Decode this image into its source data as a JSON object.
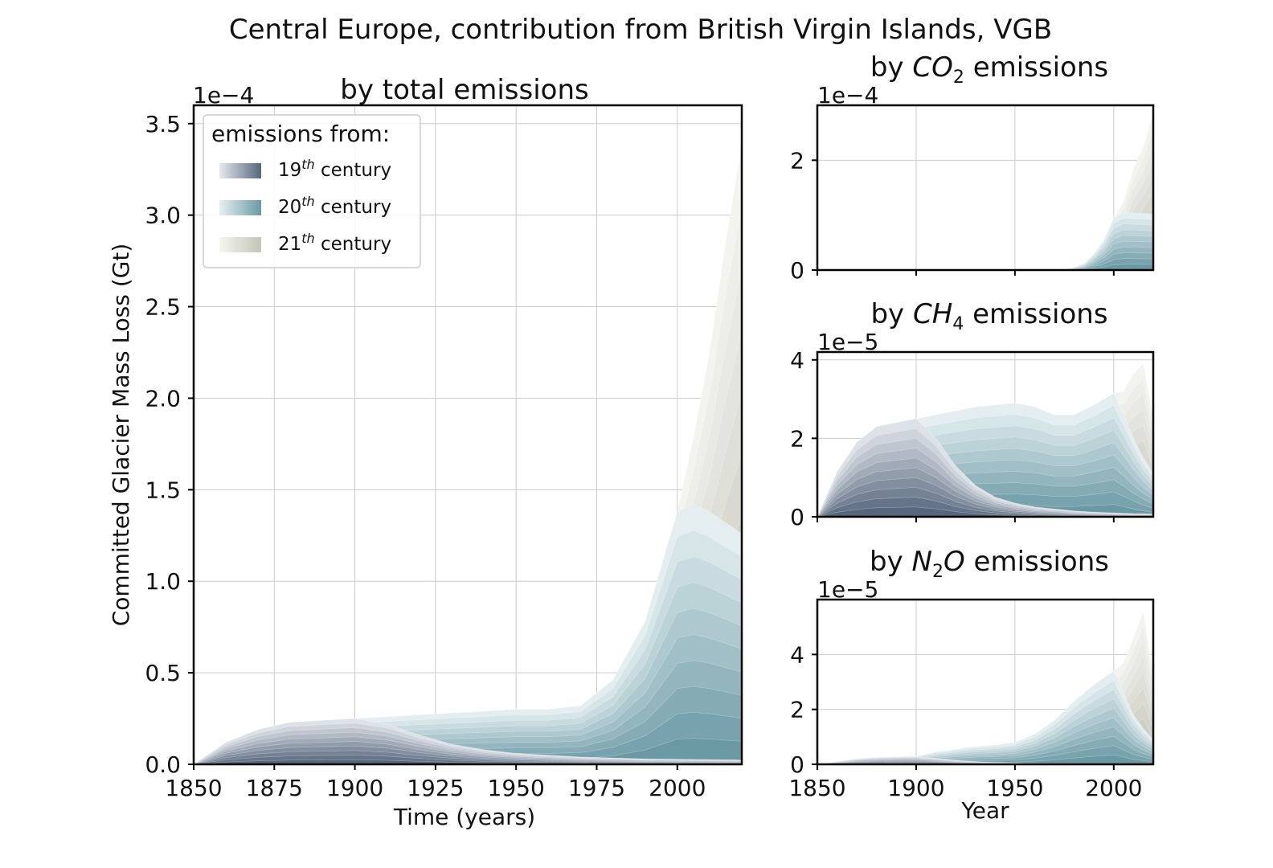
{
  "figure": {
    "suptitle": "Central Europe, contribution from British Virgin Islands, VGB"
  },
  "legend": {
    "title": "emissions from:",
    "entries": [
      {
        "base": "19",
        "sup": "th",
        "rest": " century",
        "colors": [
          "#dde2e8",
          "#b3bcc8",
          "#8a98aa",
          "#5f6f84"
        ]
      },
      {
        "base": "20",
        "sup": "th",
        "rest": " century",
        "colors": [
          "#dfeaee",
          "#b6d0d8",
          "#8eb6c1",
          "#6b98a4"
        ]
      },
      {
        "base": "21",
        "sup": "th",
        "rest": " century",
        "colors": [
          "#f0f0ec",
          "#e2e2da",
          "#d4d4ca",
          "#c5c6ba"
        ]
      }
    ]
  },
  "colors": {
    "c19_light": "#dde2e8",
    "c19_dark": "#56667c",
    "c20_light": "#e4eef1",
    "c20_dark": "#6a99a4",
    "c21_light": "#f3f3ef",
    "c21_dark": "#c4c5b8"
  },
  "chart_data": [
    {
      "id": "total",
      "type": "area",
      "title": "by total emissions",
      "xlabel": "Time (years)",
      "ylabel": "Committed Glacier Mass Loss (Gt)",
      "exponent_label": "1e−4",
      "xlim": [
        1850,
        2020
      ],
      "ylim": [
        0,
        3.6
      ],
      "x_ticks": [
        1850,
        1875,
        1900,
        1925,
        1950,
        1975,
        2000
      ],
      "x_tick_labels": [
        "1850",
        "1875",
        "1900",
        "1925",
        "1950",
        "1975",
        "2000"
      ],
      "y_ticks": [
        0,
        0.5,
        1.0,
        1.5,
        2.0,
        2.5,
        3.0,
        3.5
      ],
      "y_tick_labels": [
        "0.0",
        "0.5",
        "1.0",
        "1.5",
        "2.0",
        "2.5",
        "3.0",
        "3.5"
      ],
      "grid": true,
      "legend": "top-left",
      "stacked_total_envelope": {
        "x": [
          1850,
          1860,
          1870,
          1880,
          1890,
          1900,
          1910,
          1920,
          1930,
          1940,
          1950,
          1960,
          1970,
          1975,
          1980,
          1985,
          1990,
          1995,
          2000,
          2003,
          2005,
          2010,
          2015,
          2020
        ],
        "y": [
          0,
          0.12,
          0.19,
          0.23,
          0.24,
          0.25,
          0.26,
          0.27,
          0.28,
          0.29,
          0.3,
          0.3,
          0.32,
          0.36,
          0.45,
          0.6,
          0.78,
          1.0,
          1.38,
          1.6,
          1.78,
          2.25,
          2.85,
          3.38
        ]
      },
      "century_cumulative_tops": {
        "x": [
          1850,
          1860,
          1870,
          1880,
          1890,
          1900,
          1910,
          1920,
          1930,
          1940,
          1950,
          1960,
          1970,
          1980,
          1990,
          2000,
          2005,
          2010,
          2015,
          2020
        ],
        "c19": [
          0,
          0.12,
          0.19,
          0.23,
          0.24,
          0.25,
          0.22,
          0.16,
          0.11,
          0.08,
          0.06,
          0.05,
          0.04,
          0.035,
          0.03,
          0.028,
          0.027,
          0.026,
          0.025,
          0.024
        ],
        "c20": [
          0,
          0.12,
          0.19,
          0.23,
          0.24,
          0.25,
          0.26,
          0.27,
          0.28,
          0.29,
          0.3,
          0.3,
          0.32,
          0.46,
          0.78,
          1.38,
          1.42,
          1.38,
          1.32,
          1.26
        ],
        "c21": [
          0,
          0.12,
          0.19,
          0.23,
          0.24,
          0.25,
          0.26,
          0.27,
          0.28,
          0.29,
          0.3,
          0.3,
          0.32,
          0.46,
          0.78,
          1.38,
          1.78,
          2.25,
          2.85,
          3.38
        ]
      }
    },
    {
      "id": "co2",
      "type": "area",
      "title_prefix": "by ",
      "title_gas": "CO",
      "title_sub": "2",
      "title_gas2": "",
      "title_suffix": " emissions",
      "exponent_label": "1e−4",
      "xlim": [
        1850,
        2020
      ],
      "ylim": [
        0,
        3.0
      ],
      "y_ticks": [
        0,
        2
      ],
      "y_tick_labels": [
        "0",
        "2"
      ],
      "x_ticks": [
        1850,
        1900,
        1950,
        2000
      ],
      "grid": true,
      "century_cumulative_tops": {
        "x": [
          1850,
          1900,
          1950,
          1970,
          1975,
          1980,
          1985,
          1990,
          1995,
          2000,
          2005,
          2010,
          2015,
          2020
        ],
        "c19": [
          0,
          0,
          0,
          0,
          0,
          0,
          0,
          0,
          0,
          0,
          0,
          0,
          0,
          0
        ],
        "c20": [
          0,
          0,
          0,
          0,
          0.01,
          0.05,
          0.12,
          0.3,
          0.55,
          0.95,
          1.05,
          1.04,
          1.03,
          1.02
        ],
        "c21": [
          0,
          0,
          0,
          0,
          0.01,
          0.05,
          0.12,
          0.3,
          0.55,
          0.95,
          1.25,
          1.85,
          2.25,
          2.85
        ]
      }
    },
    {
      "id": "ch4",
      "type": "area",
      "title_prefix": "by ",
      "title_gas": "CH",
      "title_sub": "4",
      "title_gas2": "",
      "title_suffix": " emissions",
      "exponent_label": "1e−5",
      "xlim": [
        1850,
        2020
      ],
      "ylim": [
        0,
        4.2
      ],
      "y_ticks": [
        0,
        2,
        4
      ],
      "y_tick_labels": [
        "0",
        "2",
        "4"
      ],
      "x_ticks": [
        1850,
        1900,
        1950,
        2000
      ],
      "grid": true,
      "century_cumulative_tops": {
        "x": [
          1850,
          1860,
          1870,
          1880,
          1890,
          1900,
          1910,
          1920,
          1930,
          1940,
          1950,
          1960,
          1970,
          1980,
          1990,
          2000,
          2005,
          2010,
          2015,
          2020
        ],
        "c19": [
          0,
          1.15,
          1.9,
          2.3,
          2.4,
          2.5,
          2.0,
          1.3,
          0.8,
          0.5,
          0.35,
          0.25,
          0.2,
          0.15,
          0.12,
          0.1,
          0.09,
          0.08,
          0.08,
          0.07
        ],
        "c20": [
          0,
          1.15,
          1.9,
          2.3,
          2.4,
          2.5,
          2.6,
          2.7,
          2.8,
          2.85,
          2.9,
          2.8,
          2.6,
          2.6,
          2.85,
          3.15,
          2.6,
          2.0,
          1.5,
          1.1
        ],
        "c21": [
          0,
          1.15,
          1.9,
          2.3,
          2.4,
          2.5,
          2.6,
          2.7,
          2.8,
          2.85,
          2.9,
          2.8,
          2.6,
          2.6,
          2.85,
          3.15,
          3.2,
          3.65,
          3.9,
          2.5
        ]
      }
    },
    {
      "id": "n2o",
      "type": "area",
      "title_prefix": "by ",
      "title_gas": "N",
      "title_sub": "2",
      "title_gas2": "O",
      "title_suffix": " emissions",
      "xlabel": "Year",
      "exponent_label": "1e−5",
      "xlim": [
        1850,
        2020
      ],
      "ylim": [
        0,
        6.0
      ],
      "y_ticks": [
        0,
        2,
        4
      ],
      "y_tick_labels": [
        "0",
        "2",
        "4"
      ],
      "x_ticks": [
        1850,
        1900,
        1950,
        2000
      ],
      "x_tick_labels": [
        "1850",
        "1900",
        "1950",
        "2000"
      ],
      "grid": true,
      "century_cumulative_tops": {
        "x": [
          1850,
          1860,
          1870,
          1880,
          1890,
          1900,
          1910,
          1920,
          1930,
          1940,
          1950,
          1960,
          1970,
          1980,
          1990,
          2000,
          2005,
          2010,
          2015,
          2020
        ],
        "c19": [
          0,
          0.1,
          0.2,
          0.25,
          0.27,
          0.28,
          0.22,
          0.15,
          0.1,
          0.07,
          0.05,
          0.04,
          0.03,
          0.03,
          0.02,
          0.02,
          0.02,
          0.02,
          0.02,
          0.02
        ],
        "c20": [
          0,
          0.1,
          0.2,
          0.25,
          0.27,
          0.3,
          0.45,
          0.55,
          0.65,
          0.7,
          0.8,
          1.1,
          1.6,
          2.3,
          2.9,
          3.4,
          2.6,
          1.8,
          1.3,
          0.9
        ],
        "c21": [
          0,
          0.1,
          0.2,
          0.25,
          0.27,
          0.3,
          0.45,
          0.55,
          0.65,
          0.7,
          0.8,
          1.1,
          1.6,
          2.3,
          2.9,
          3.4,
          3.7,
          4.6,
          5.6,
          3.2
        ]
      }
    }
  ]
}
